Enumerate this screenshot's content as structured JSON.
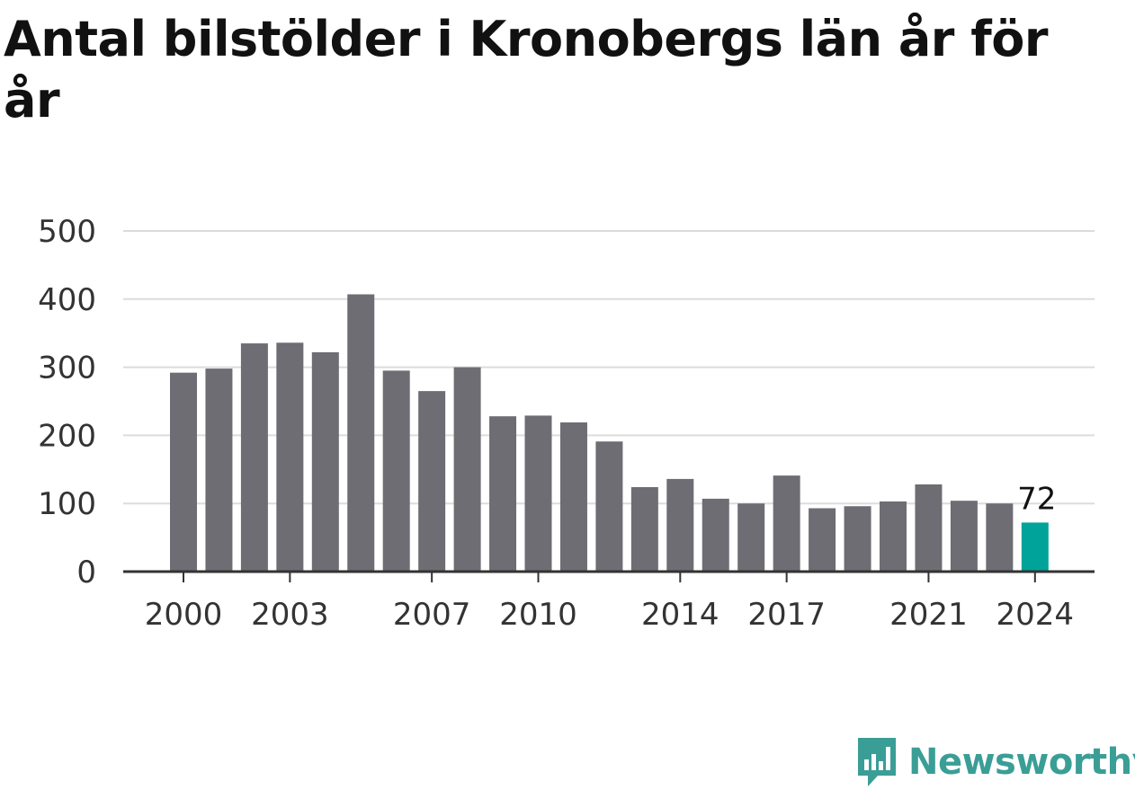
{
  "chart_data": {
    "type": "bar",
    "title": "Antal bilstölder i Kronobergs län år för år",
    "xlabel": "",
    "ylabel": "",
    "categories": [
      2000,
      2001,
      2002,
      2003,
      2004,
      2005,
      2006,
      2007,
      2008,
      2009,
      2010,
      2011,
      2012,
      2013,
      2014,
      2015,
      2016,
      2017,
      2018,
      2019,
      2020,
      2021,
      2022,
      2023,
      2024
    ],
    "values": [
      292,
      298,
      335,
      336,
      322,
      407,
      295,
      265,
      300,
      228,
      229,
      219,
      191,
      124,
      136,
      107,
      100,
      141,
      93,
      96,
      103,
      128,
      104,
      100,
      72
    ],
    "ylim": [
      0,
      500
    ],
    "yticks": [
      "0",
      "100",
      "200",
      "300",
      "400",
      "500"
    ],
    "xticks": [
      "2000",
      "2003",
      "2007",
      "2010",
      "2014",
      "2017",
      "2021",
      "2024"
    ],
    "grid": true,
    "bar_color": "#6e6d73",
    "highlight_color": "#00a39a",
    "highlight_category": 2024,
    "highlight_label": "72"
  },
  "brand": {
    "name": "Newsworthy",
    "icon": "newsworthy-logo-icon",
    "color": "#3a9e96"
  }
}
